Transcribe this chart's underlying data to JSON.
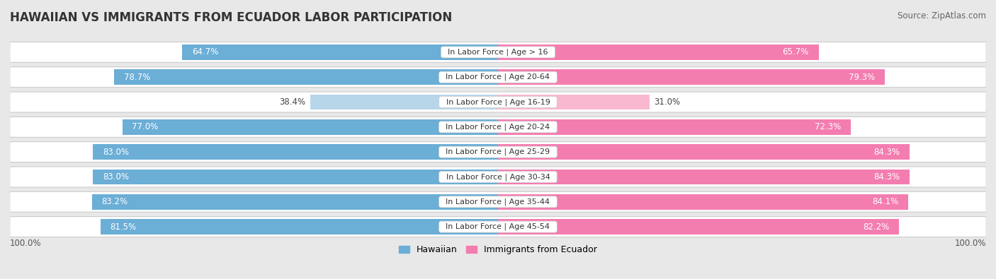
{
  "title": "HAWAIIAN VS IMMIGRANTS FROM ECUADOR LABOR PARTICIPATION",
  "source": "Source: ZipAtlas.com",
  "categories": [
    "In Labor Force | Age > 16",
    "In Labor Force | Age 20-64",
    "In Labor Force | Age 16-19",
    "In Labor Force | Age 20-24",
    "In Labor Force | Age 25-29",
    "In Labor Force | Age 30-34",
    "In Labor Force | Age 35-44",
    "In Labor Force | Age 45-54"
  ],
  "hawaiian_values": [
    64.7,
    78.7,
    38.4,
    77.0,
    83.0,
    83.0,
    83.2,
    81.5
  ],
  "ecuador_values": [
    65.7,
    79.3,
    31.0,
    72.3,
    84.3,
    84.3,
    84.1,
    82.2
  ],
  "hawaiian_color": "#6baed6",
  "hawaiian_color_light": "#b8d6ea",
  "ecuador_color": "#f47db0",
  "ecuador_color_light": "#f9b8d0",
  "background_color": "#e8e8e8",
  "row_bg_color": "#ffffff",
  "row_bg_alt": "#f0f0f0",
  "bar_height": 0.62,
  "max_value": 100.0,
  "legend_hawaiian": "Hawaiian",
  "legend_ecuador": "Immigrants from Ecuador",
  "left_label": "100.0%",
  "right_label": "100.0%",
  "title_fontsize": 12,
  "source_fontsize": 8.5,
  "bar_label_fontsize": 8.5,
  "category_fontsize": 8,
  "legend_fontsize": 9,
  "low_threshold": 50.0
}
